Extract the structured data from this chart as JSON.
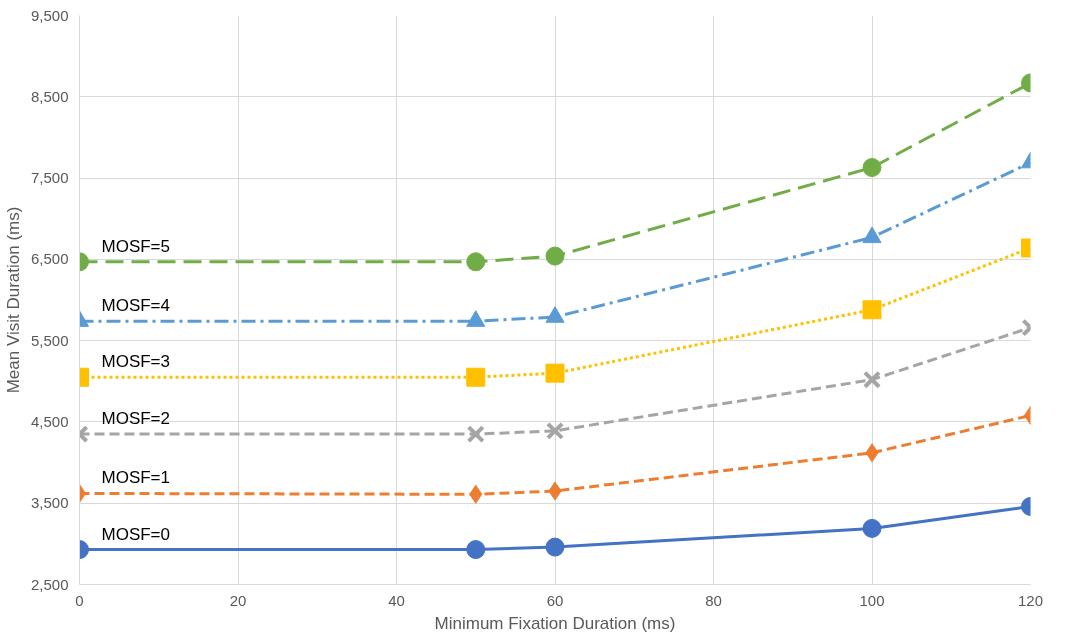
{
  "chart_data": {
    "type": "line",
    "xlabel": "Minimum Fixation Duration (ms)",
    "ylabel": "Mean Visit Duration (ms)",
    "x": [
      0,
      50,
      60,
      100,
      120
    ],
    "xlim": [
      0,
      120
    ],
    "xticks": [
      0,
      20,
      40,
      60,
      80,
      100,
      120
    ],
    "ylim": [
      2500,
      9500
    ],
    "yticks": [
      {
        "value": 2500,
        "label": "2,500"
      },
      {
        "value": 3500,
        "label": "3,500"
      },
      {
        "value": 4500,
        "label": "4,500"
      },
      {
        "value": 5500,
        "label": "5,500"
      },
      {
        "value": 6500,
        "label": "6,500"
      },
      {
        "value": 7500,
        "label": "7,500"
      },
      {
        "value": 8500,
        "label": "8,500"
      },
      {
        "value": 9500,
        "label": "9,500"
      }
    ],
    "grid": true,
    "series": [
      {
        "name": "MOSF=0",
        "color": "#4472c4",
        "marker": "circle",
        "line_style": "solid",
        "values": [
          2930,
          2930,
          2960,
          3190,
          3460
        ]
      },
      {
        "name": "MOSF=1",
        "color": "#ed7d31",
        "marker": "diamond",
        "line_style": "dashed",
        "values": [
          3620,
          3610,
          3650,
          4120,
          4580
        ]
      },
      {
        "name": "MOSF=2",
        "color": "#a5a5a5",
        "marker": "cross",
        "line_style": "dashed",
        "values": [
          4350,
          4350,
          4390,
          5020,
          5660
        ]
      },
      {
        "name": "MOSF=3",
        "color": "#ffc000",
        "marker": "square",
        "line_style": "dotted",
        "values": [
          5050,
          5050,
          5100,
          5880,
          6640
        ]
      },
      {
        "name": "MOSF=4",
        "color": "#5b9bd5",
        "marker": "triangle",
        "line_style": "dashdot",
        "values": [
          5740,
          5740,
          5790,
          6770,
          7690
        ]
      },
      {
        "name": "MOSF=5",
        "color": "#70ad47",
        "marker": "circle",
        "line_style": "longdash",
        "values": [
          6470,
          6470,
          6540,
          7630,
          8670
        ]
      }
    ]
  }
}
